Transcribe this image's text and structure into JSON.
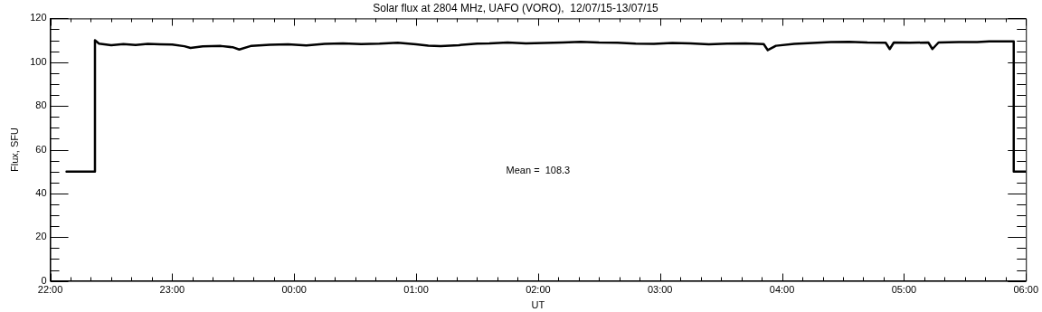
{
  "chart_data": {
    "type": "line",
    "title": "Solar flux at 2804 MHz, UAFO (VORO),  12/07/15-13/07/15",
    "xlabel": "UT",
    "ylabel": "Flux, SFU",
    "annotations": [
      "Mean =  108.3"
    ],
    "series": [
      {
        "color": "#000000",
        "x": [
          "--07-12T22:08",
          "--07-12T22:22",
          "--07-12T22:22",
          "--07-12T22:24",
          "--07-12T22:30",
          "--07-12T22:36",
          "--07-12T22:42",
          "--07-12T22:48",
          "--07-12T22:54",
          "--07-12T23:00",
          "--07-12T23:06",
          "--07-12T23:09",
          "--07-12T23:15",
          "--07-12T23:24",
          "--07-12T23:30",
          "--07-12T23:33",
          "--07-12T23:39",
          "--07-12T23:48",
          "--07-12T23:57",
          "--07-13T00:06",
          "--07-13T00:15",
          "--07-13T00:24",
          "--07-13T00:33",
          "--07-13T00:42",
          "--07-13T00:51",
          "--07-13T01:00",
          "--07-13T01:06",
          "--07-13T01:12",
          "--07-13T01:21",
          "--07-13T01:30",
          "--07-13T01:36",
          "--07-13T01:45",
          "--07-13T01:54",
          "--07-13T02:03",
          "--07-13T02:12",
          "--07-13T02:21",
          "--07-13T02:30",
          "--07-13T02:39",
          "--07-13T02:48",
          "--07-13T02:57",
          "--07-13T03:06",
          "--07-13T03:15",
          "--07-13T03:24",
          "--07-13T03:33",
          "--07-13T03:42",
          "--07-13T03:51",
          "--07-13T03:53",
          "--07-13T03:57",
          "--07-13T04:06",
          "--07-13T04:15",
          "--07-13T04:24",
          "--07-13T04:33",
          "--07-13T04:42",
          "--07-13T04:51",
          "--07-13T04:53",
          "--07-13T04:55",
          "--07-13T05:03",
          "--07-13T05:12",
          "--07-13T05:14",
          "--07-13T05:17",
          "--07-13T05:27",
          "--07-13T05:36",
          "--07-13T05:42",
          "--07-13T05:54",
          "--07-13T05:54",
          "--07-13T06:00"
        ],
        "values": [
          50,
          50,
          110,
          108.5,
          107.8,
          108.3,
          107.9,
          108.4,
          108.2,
          108.1,
          107.3,
          106.5,
          107.2,
          107.4,
          106.8,
          105.8,
          107.5,
          108.0,
          108.2,
          107.7,
          108.4,
          108.6,
          108.3,
          108.5,
          108.9,
          108.2,
          107.6,
          107.3,
          107.8,
          108.5,
          108.6,
          109.0,
          108.6,
          108.8,
          109.0,
          109.3,
          109.0,
          108.9,
          108.5,
          108.4,
          108.8,
          108.6,
          108.2,
          108.5,
          108.6,
          108.3,
          105.5,
          107.5,
          108.4,
          108.8,
          109.2,
          109.3,
          109.0,
          108.9,
          106.0,
          109.0,
          108.9,
          109.0,
          106.0,
          109.0,
          109.2,
          109.2,
          109.5,
          109.5,
          50,
          50
        ]
      }
    ],
    "xlim": [
      "--07-12T22:00",
      "--07-13T06:00"
    ],
    "xticks": [
      {
        "value": "--07-12T22:00",
        "label": "22:00"
      },
      {
        "value": "--07-12T22:10",
        "label": null
      },
      {
        "value": "--07-12T22:20",
        "label": null
      },
      {
        "value": "--07-12T22:30",
        "label": null
      },
      {
        "value": "--07-12T22:40",
        "label": null
      },
      {
        "value": "--07-12T22:50",
        "label": null
      },
      {
        "value": "--07-12T23:00",
        "label": "23:00"
      },
      {
        "value": "--07-12T23:10",
        "label": null
      },
      {
        "value": "--07-12T23:20",
        "label": null
      },
      {
        "value": "--07-12T23:30",
        "label": null
      },
      {
        "value": "--07-12T23:40",
        "label": null
      },
      {
        "value": "--07-12T23:50",
        "label": null
      },
      {
        "value": "--07-13T00:00",
        "label": "00:00"
      },
      {
        "value": "--07-13T00:10",
        "label": null
      },
      {
        "value": "--07-13T00:20",
        "label": null
      },
      {
        "value": "--07-13T00:30",
        "label": null
      },
      {
        "value": "--07-13T00:40",
        "label": null
      },
      {
        "value": "--07-13T00:50",
        "label": null
      },
      {
        "value": "--07-13T01:00",
        "label": "01:00"
      },
      {
        "value": "--07-13T01:10",
        "label": null
      },
      {
        "value": "--07-13T01:20",
        "label": null
      },
      {
        "value": "--07-13T01:30",
        "label": null
      },
      {
        "value": "--07-13T01:40",
        "label": null
      },
      {
        "value": "--07-13T01:50",
        "label": null
      },
      {
        "value": "--07-13T02:00",
        "label": "02:00"
      },
      {
        "value": "--07-13T02:10",
        "label": null
      },
      {
        "value": "--07-13T02:20",
        "label": null
      },
      {
        "value": "--07-13T02:30",
        "label": null
      },
      {
        "value": "--07-13T02:40",
        "label": null
      },
      {
        "value": "--07-13T02:50",
        "label": null
      },
      {
        "value": "--07-13T03:00",
        "label": "03:00"
      },
      {
        "value": "--07-13T03:10",
        "label": null
      },
      {
        "value": "--07-13T03:20",
        "label": null
      },
      {
        "value": "--07-13T03:30",
        "label": null
      },
      {
        "value": "--07-13T03:40",
        "label": null
      },
      {
        "value": "--07-13T03:50",
        "label": null
      },
      {
        "value": "--07-13T04:00",
        "label": "04:00"
      },
      {
        "value": "--07-13T04:10",
        "label": null
      },
      {
        "value": "--07-13T04:20",
        "label": null
      },
      {
        "value": "--07-13T04:30",
        "label": null
      },
      {
        "value": "--07-13T04:40",
        "label": null
      },
      {
        "value": "--07-13T04:50",
        "label": null
      },
      {
        "value": "--07-13T05:00",
        "label": "05:00"
      },
      {
        "value": "--07-13T05:10",
        "label": null
      },
      {
        "value": "--07-13T05:20",
        "label": null
      },
      {
        "value": "--07-13T05:30",
        "label": null
      },
      {
        "value": "--07-13T05:40",
        "label": null
      },
      {
        "value": "--07-13T05:50",
        "label": null
      },
      {
        "value": "--07-13T06:00",
        "label": "06:00"
      }
    ],
    "ylim": [
      0,
      120
    ],
    "yticks": [
      0,
      {
        "value": 5,
        "label": null
      },
      {
        "value": 10,
        "label": null
      },
      {
        "value": 15,
        "label": null
      },
      20,
      {
        "value": 25,
        "label": null
      },
      {
        "value": 30,
        "label": null
      },
      {
        "value": 35,
        "label": null
      },
      40,
      {
        "value": 45,
        "label": null
      },
      {
        "value": 50,
        "label": null
      },
      {
        "value": 55,
        "label": null
      },
      60,
      {
        "value": 65,
        "label": null
      },
      {
        "value": 70,
        "label": null
      },
      {
        "value": 75,
        "label": null
      },
      80,
      {
        "value": 85,
        "label": null
      },
      {
        "value": 90,
        "label": null
      },
      {
        "value": 95,
        "label": null
      },
      100,
      {
        "value": 105,
        "label": null
      },
      {
        "value": 110,
        "label": null
      },
      {
        "value": 115,
        "label": null
      },
      120
    ],
    "marker": "none",
    "line_style": "solid",
    "legend": false,
    "grid": false
  }
}
